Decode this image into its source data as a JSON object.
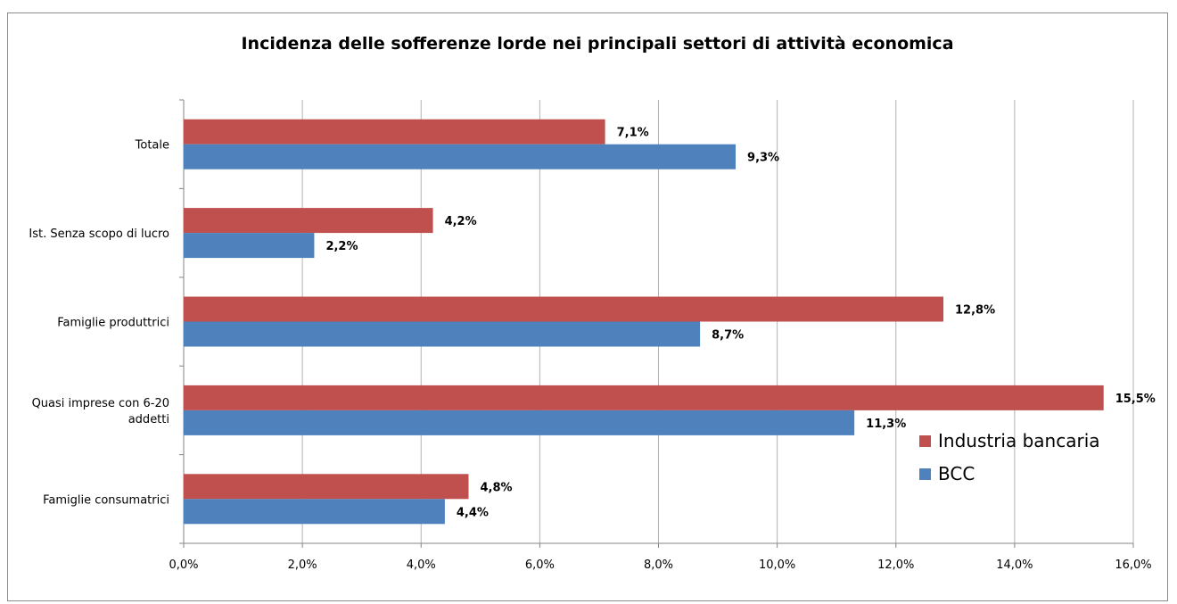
{
  "chart_data": {
    "type": "bar",
    "orientation": "horizontal",
    "title": "Incidenza delle sofferenze lorde nei principali settori di attività economica",
    "categories": [
      [
        "Totale"
      ],
      [
        "Ist. Senza scopo di lucro"
      ],
      [
        "Famiglie produttrici"
      ],
      [
        "Quasi imprese con 6-20",
        "addetti"
      ],
      [
        "Famiglie consumatrici"
      ]
    ],
    "series": [
      {
        "name": "Industria bancaria",
        "color": "#c0504d",
        "values": [
          7.1,
          4.2,
          12.8,
          15.5,
          4.8
        ],
        "labels": [
          "7,1%",
          "4,2%",
          "12,8%",
          "15,5%",
          "4,8%"
        ]
      },
      {
        "name": "BCC",
        "color": "#4f81bd",
        "values": [
          9.3,
          2.2,
          8.7,
          11.3,
          4.4
        ],
        "labels": [
          "9,3%",
          "2,2%",
          "8,7%",
          "11,3%",
          "4,4%"
        ]
      }
    ],
    "xlim": [
      0,
      16
    ],
    "xticks": [
      "0,0%",
      "2,0%",
      "4,0%",
      "6,0%",
      "8,0%",
      "10,0%",
      "12,0%",
      "14,0%",
      "16,0%"
    ],
    "grid": true,
    "legend": "right"
  }
}
